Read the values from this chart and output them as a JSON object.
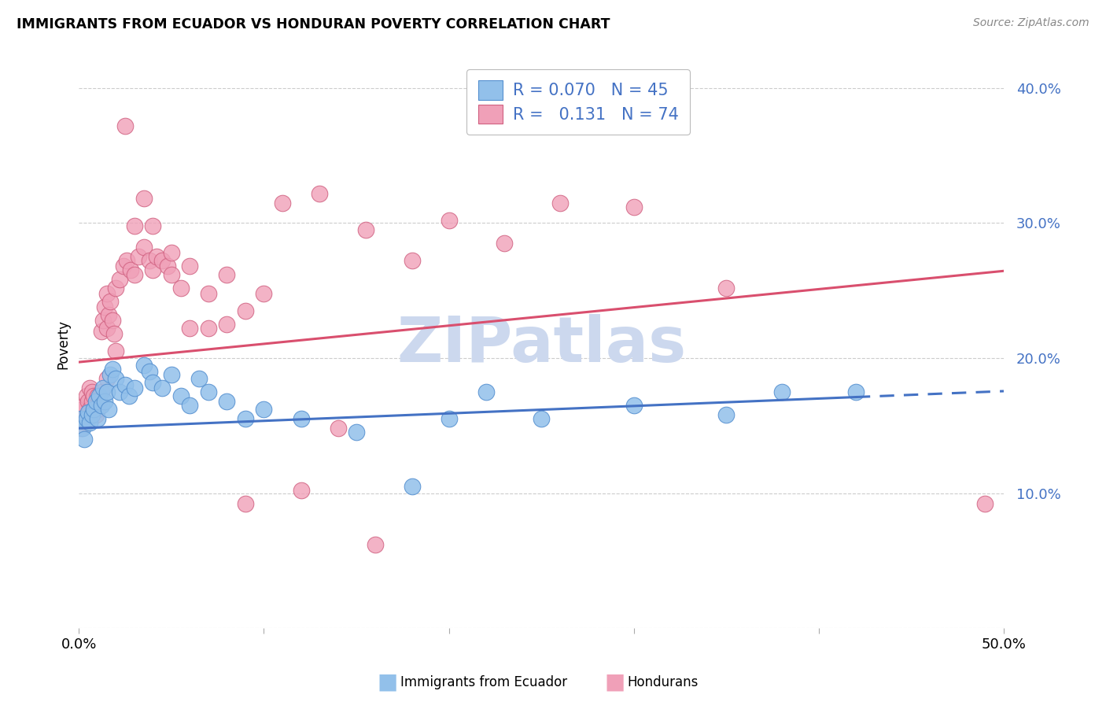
{
  "title": "IMMIGRANTS FROM ECUADOR VS HONDURAN POVERTY CORRELATION CHART",
  "source": "Source: ZipAtlas.com",
  "ylabel": "Poverty",
  "xmin": 0.0,
  "xmax": 0.5,
  "ymin": 0.0,
  "ymax": 0.42,
  "yticks": [
    0.0,
    0.1,
    0.2,
    0.3,
    0.4
  ],
  "ytick_labels": [
    "",
    "10.0%",
    "20.0%",
    "30.0%",
    "40.0%"
  ],
  "xticks": [
    0.0,
    0.1,
    0.2,
    0.3,
    0.4,
    0.5
  ],
  "xtick_labels": [
    "0.0%",
    "",
    "",
    "",
    "",
    "50.0%"
  ],
  "color_blue": "#92c0ea",
  "color_pink": "#f0a0b8",
  "color_blue_edge": "#5590d0",
  "color_pink_edge": "#d06080",
  "color_line_blue": "#4472c4",
  "color_line_pink": "#d94f6e",
  "watermark": "ZIPatlas",
  "watermark_color": "#ccd8ee",
  "blue_line_intercept": 0.148,
  "blue_line_slope": 0.055,
  "blue_line_solid_end": 0.42,
  "pink_line_intercept": 0.197,
  "pink_line_slope": 0.135,
  "ecuador_x": [
    0.001,
    0.002,
    0.003,
    0.004,
    0.005,
    0.006,
    0.007,
    0.008,
    0.009,
    0.01,
    0.011,
    0.012,
    0.013,
    0.014,
    0.015,
    0.016,
    0.017,
    0.018,
    0.02,
    0.022,
    0.025,
    0.027,
    0.03,
    0.035,
    0.038,
    0.04,
    0.045,
    0.05,
    0.055,
    0.06,
    0.065,
    0.07,
    0.08,
    0.09,
    0.1,
    0.12,
    0.15,
    0.18,
    0.2,
    0.22,
    0.25,
    0.3,
    0.35,
    0.38,
    0.42
  ],
  "ecuador_y": [
    0.155,
    0.148,
    0.14,
    0.155,
    0.16,
    0.152,
    0.158,
    0.162,
    0.168,
    0.155,
    0.172,
    0.165,
    0.178,
    0.168,
    0.175,
    0.162,
    0.188,
    0.192,
    0.185,
    0.175,
    0.18,
    0.172,
    0.178,
    0.195,
    0.19,
    0.182,
    0.178,
    0.188,
    0.172,
    0.165,
    0.185,
    0.175,
    0.168,
    0.155,
    0.162,
    0.155,
    0.145,
    0.105,
    0.155,
    0.175,
    0.155,
    0.165,
    0.158,
    0.175,
    0.175
  ],
  "honduran_x": [
    0.001,
    0.002,
    0.002,
    0.003,
    0.003,
    0.004,
    0.004,
    0.005,
    0.005,
    0.006,
    0.006,
    0.007,
    0.007,
    0.008,
    0.008,
    0.009,
    0.009,
    0.01,
    0.01,
    0.011,
    0.012,
    0.012,
    0.013,
    0.014,
    0.015,
    0.015,
    0.016,
    0.017,
    0.018,
    0.019,
    0.02,
    0.022,
    0.024,
    0.026,
    0.028,
    0.03,
    0.032,
    0.035,
    0.038,
    0.04,
    0.042,
    0.045,
    0.048,
    0.05,
    0.055,
    0.06,
    0.07,
    0.08,
    0.09,
    0.1,
    0.11,
    0.13,
    0.155,
    0.18,
    0.2,
    0.23,
    0.26,
    0.3,
    0.35,
    0.49,
    0.025,
    0.03,
    0.035,
    0.04,
    0.05,
    0.02,
    0.015,
    0.06,
    0.08,
    0.07,
    0.09,
    0.12,
    0.14,
    0.16
  ],
  "honduran_y": [
    0.148,
    0.162,
    0.155,
    0.165,
    0.155,
    0.152,
    0.172,
    0.168,
    0.158,
    0.162,
    0.178,
    0.168,
    0.175,
    0.172,
    0.162,
    0.165,
    0.158,
    0.162,
    0.172,
    0.168,
    0.22,
    0.175,
    0.228,
    0.238,
    0.248,
    0.222,
    0.232,
    0.242,
    0.228,
    0.218,
    0.252,
    0.258,
    0.268,
    0.272,
    0.265,
    0.262,
    0.275,
    0.282,
    0.272,
    0.265,
    0.275,
    0.272,
    0.268,
    0.278,
    0.252,
    0.268,
    0.248,
    0.262,
    0.235,
    0.248,
    0.315,
    0.322,
    0.295,
    0.272,
    0.302,
    0.285,
    0.315,
    0.312,
    0.252,
    0.092,
    0.372,
    0.298,
    0.318,
    0.298,
    0.262,
    0.205,
    0.185,
    0.222,
    0.225,
    0.222,
    0.092,
    0.102,
    0.148,
    0.062
  ]
}
